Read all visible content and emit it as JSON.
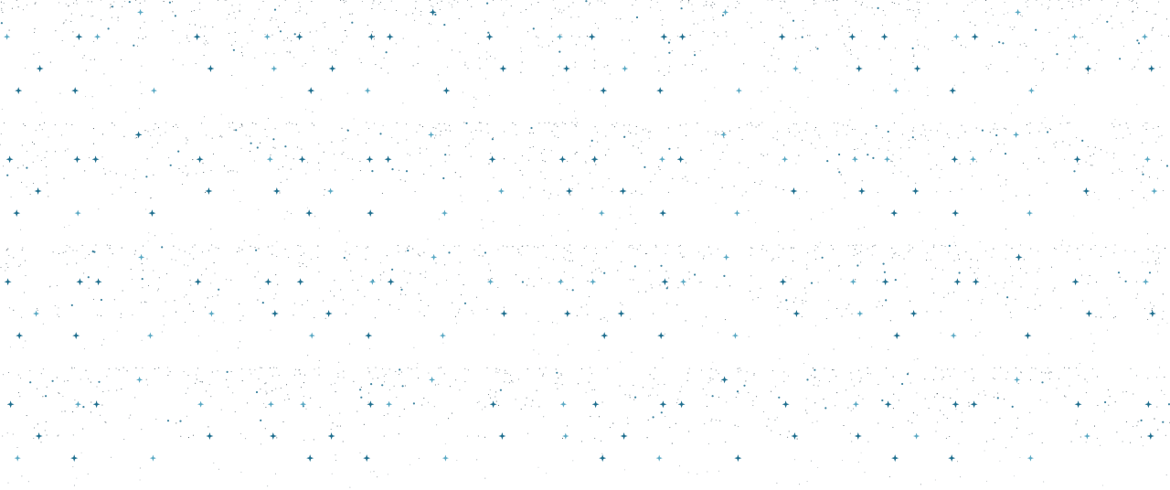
{
  "background": {
    "color": "#ffffff",
    "pattern": "starfield",
    "rows": 4,
    "columns": 4
  },
  "palette": {
    "dot": "#3a4a55",
    "star_dark": "#1f6f8f",
    "star_light": "#5aa9c4"
  },
  "icons": {
    "star": "four-point-sparkle-icon",
    "dot": "dot-icon"
  }
}
